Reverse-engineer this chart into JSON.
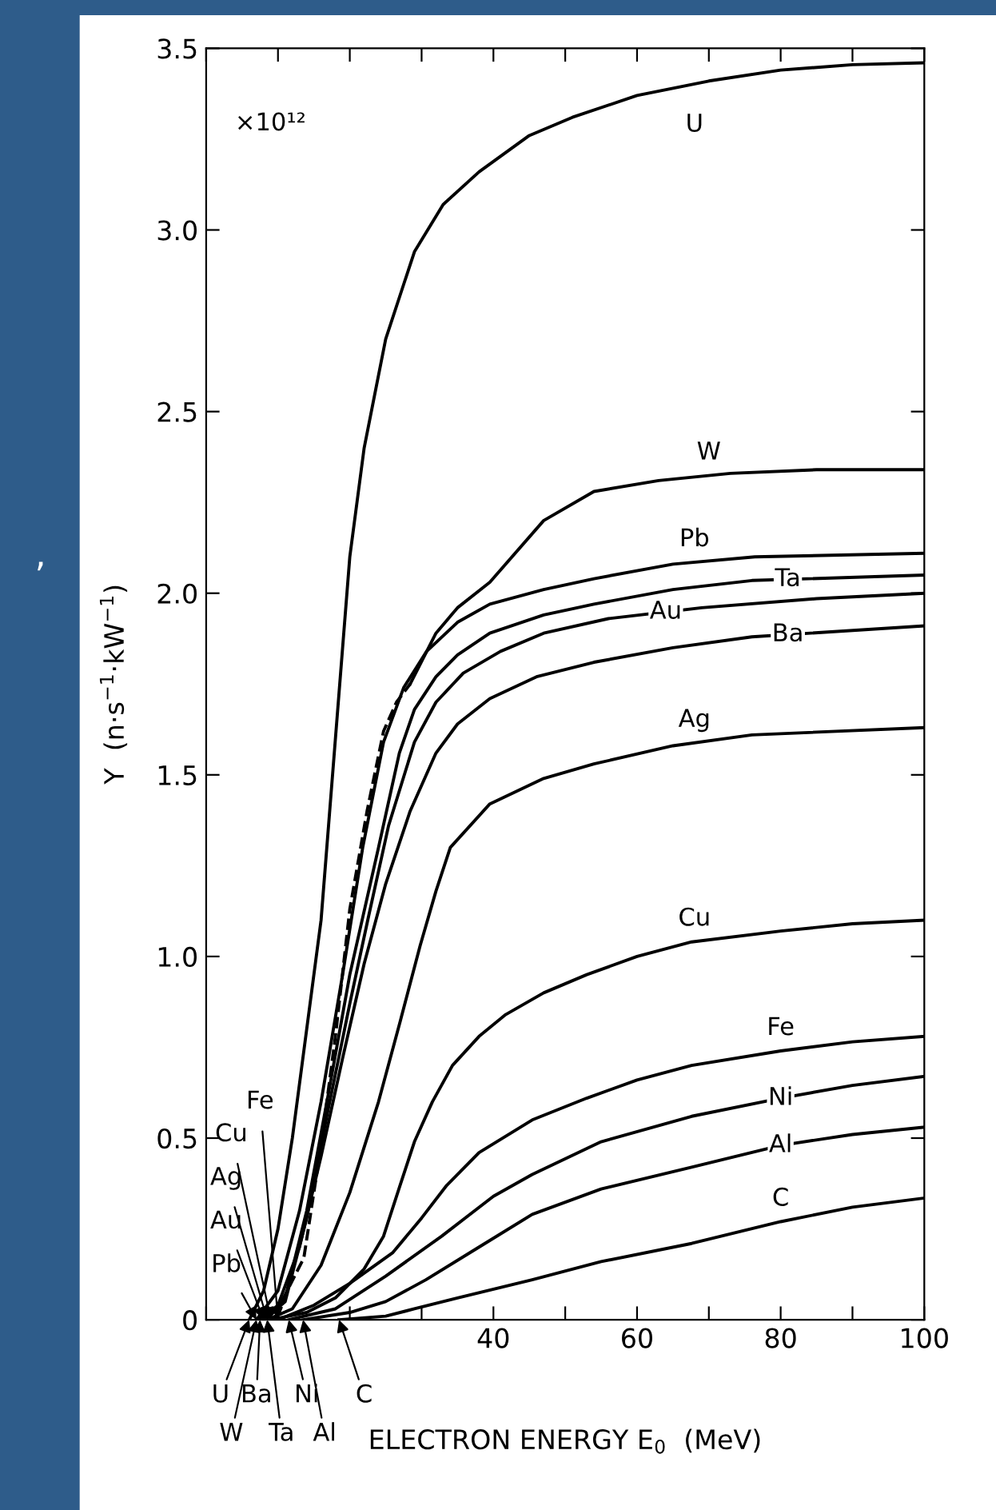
{
  "chart_data": {
    "type": "line",
    "xlabel": "ELECTRON ENERGY E$_{0}$  (MeV)",
    "ylabel": "Y  (n·s$^{−1}$·kW$^{−1}$)",
    "xlim": [
      0,
      100
    ],
    "ylim": [
      0,
      3.5
    ],
    "xticks": [
      {
        "value": 0,
        "label": null
      },
      {
        "value": 10,
        "label": null
      },
      {
        "value": 20,
        "label": null
      },
      {
        "value": 30,
        "label": null
      },
      40,
      60,
      80,
      100,
      {
        "value": 50,
        "label": null
      },
      {
        "value": 70,
        "label": null
      },
      {
        "value": 90,
        "label": null
      }
    ],
    "yticks": [
      0,
      0.5,
      {
        "value": 1,
        "label": "1.0"
      },
      1.5,
      {
        "value": 2,
        "label": "2.0"
      },
      2.5,
      {
        "value": 3,
        "label": "3.0"
      },
      3.5
    ],
    "grid": false,
    "legend": false,
    "marker": "none",
    "line_style": "solid",
    "series": [
      {
        "name": "U",
        "color": "#000000",
        "x": [
          6,
          8,
          10,
          12,
          14,
          16,
          18,
          20,
          22,
          25,
          29,
          33,
          38,
          45,
          51,
          60,
          70,
          80,
          90,
          100
        ],
        "values": [
          0,
          0.08,
          0.25,
          0.5,
          0.8,
          1.1,
          1.6,
          2.1,
          2.4,
          2.7,
          2.94,
          3.07,
          3.16,
          3.26,
          3.31,
          3.37,
          3.41,
          3.44,
          3.455,
          3.46
        ]
      },
      {
        "name": "W",
        "color": "#000000",
        "x": [
          28.4,
          32,
          35,
          39.5,
          47,
          54,
          63,
          73,
          85,
          100
        ],
        "values": [
          1.75,
          1.89,
          1.96,
          2.03,
          2.2,
          2.28,
          2.31,
          2.33,
          2.34,
          2.34
        ]
      },
      {
        "color": "#000000",
        "line_style": "dashed",
        "x": [
          7,
          10,
          13.6,
          16,
          18,
          20,
          22.4,
          24.7,
          26.5,
          28.4
        ],
        "values": [
          0,
          0.03,
          0.17,
          0.48,
          0.78,
          1.13,
          1.4,
          1.62,
          1.7,
          1.75
        ]
      },
      {
        "name": "Pb",
        "color": "#000000",
        "x": [
          7,
          10,
          13,
          16,
          19,
          21.8,
          24.7,
          27.5,
          30.7,
          35,
          39.5,
          47,
          54,
          65,
          76.4,
          100
        ],
        "values": [
          0,
          0.08,
          0.3,
          0.6,
          0.95,
          1.3,
          1.59,
          1.74,
          1.84,
          1.92,
          1.97,
          2.01,
          2.04,
          2.08,
          2.1,
          2.11
        ]
      },
      {
        "name": "Ta",
        "color": "#000000",
        "x": [
          8.5,
          11,
          14,
          17,
          20,
          24,
          26.9,
          29,
          32,
          35,
          39.5,
          47,
          54,
          65,
          76,
          100
        ],
        "values": [
          0,
          0.06,
          0.3,
          0.62,
          0.95,
          1.3,
          1.56,
          1.68,
          1.77,
          1.83,
          1.89,
          1.94,
          1.97,
          2.01,
          2.035,
          2.05
        ]
      },
      {
        "name": "Au",
        "color": "#000000",
        "x": [
          8,
          11,
          14,
          17,
          20,
          22.5,
          25.4,
          29,
          32,
          35.8,
          41,
          47,
          56,
          69,
          85,
          100
        ],
        "values": [
          0,
          0.05,
          0.28,
          0.58,
          0.87,
          1.1,
          1.36,
          1.59,
          1.7,
          1.78,
          1.84,
          1.89,
          1.93,
          1.96,
          1.985,
          2.0
        ]
      },
      {
        "name": "Ba",
        "color": "#000000",
        "x": [
          7.5,
          10,
          13,
          16,
          19,
          22,
          25,
          28.4,
          32,
          35,
          39.5,
          46,
          54,
          65,
          76,
          100
        ],
        "values": [
          0,
          0.04,
          0.2,
          0.45,
          0.72,
          0.98,
          1.2,
          1.4,
          1.56,
          1.64,
          1.71,
          1.77,
          1.81,
          1.85,
          1.88,
          1.91
        ]
      },
      {
        "name": "Ag",
        "color": "#000000",
        "x": [
          8.5,
          12,
          16,
          20,
          24,
          27,
          29.8,
          32,
          34,
          39.5,
          47,
          54,
          65,
          76,
          100
        ],
        "values": [
          0,
          0.03,
          0.15,
          0.35,
          0.6,
          0.82,
          1.03,
          1.18,
          1.3,
          1.42,
          1.49,
          1.53,
          1.58,
          1.61,
          1.63
        ]
      },
      {
        "name": "Cu",
        "color": "#000000",
        "x": [
          9,
          14,
          18,
          22,
          24.7,
          27,
          29,
          31.5,
          34.3,
          38,
          41.7,
          47,
          53,
          60,
          67.6,
          80,
          90,
          100
        ],
        "values": [
          0,
          0.02,
          0.06,
          0.14,
          0.23,
          0.37,
          0.49,
          0.6,
          0.7,
          0.78,
          0.84,
          0.9,
          0.95,
          1.0,
          1.04,
          1.07,
          1.09,
          1.1
        ]
      },
      {
        "name": "Fe",
        "color": "#000000",
        "x": [
          10,
          15,
          20,
          26,
          30,
          33.5,
          38,
          45.4,
          53,
          60,
          67.6,
          80,
          90,
          100
        ],
        "values": [
          0,
          0.04,
          0.1,
          0.185,
          0.28,
          0.37,
          0.46,
          0.55,
          0.61,
          0.66,
          0.7,
          0.74,
          0.765,
          0.78
        ]
      },
      {
        "name": "Ni",
        "color": "#000000",
        "x": [
          11.5,
          18,
          25,
          32.8,
          40,
          45.4,
          55,
          67.6,
          80,
          90,
          100
        ],
        "values": [
          0,
          0.03,
          0.12,
          0.23,
          0.34,
          0.4,
          0.49,
          0.56,
          0.61,
          0.645,
          0.67
        ]
      },
      {
        "name": "Al",
        "color": "#000000",
        "x": [
          13.5,
          20,
          25,
          30.6,
          38,
          45.4,
          55,
          67.6,
          80,
          90,
          100
        ],
        "values": [
          0,
          0.02,
          0.05,
          0.11,
          0.2,
          0.29,
          0.36,
          0.42,
          0.48,
          0.51,
          0.53
        ]
      },
      {
        "name": "C",
        "color": "#000000",
        "x": [
          18.5,
          25,
          29,
          35,
          45.4,
          55,
          67.6,
          80,
          90,
          100
        ],
        "values": [
          0,
          0.01,
          0.03,
          0.06,
          0.11,
          0.16,
          0.21,
          0.27,
          0.31,
          0.335
        ]
      }
    ],
    "annotations": [
      "×10¹²",
      ",",
      {
        "text": "U",
        "x": 6,
        "y": 0
      },
      {
        "text": "W",
        "x": 7,
        "y": 0
      },
      {
        "text": "Ba",
        "x": 7.5,
        "y": 0
      },
      {
        "text": "Ta",
        "x": 8.5,
        "y": 0
      },
      {
        "text": "Ni",
        "x": 11.5,
        "y": 0
      },
      {
        "text": "Al",
        "x": 13.5,
        "y": 0
      },
      {
        "text": "C",
        "x": 18.5,
        "y": 0
      },
      {
        "text": "Pb",
        "x": 7,
        "y": 0
      },
      {
        "text": "Au",
        "x": 8,
        "y": 0
      },
      {
        "text": "Ag",
        "x": 8.5,
        "y": 0
      },
      {
        "text": "Cu",
        "x": 9,
        "y": 0
      },
      {
        "text": "Fe",
        "x": 10,
        "y": 0
      }
    ]
  }
}
